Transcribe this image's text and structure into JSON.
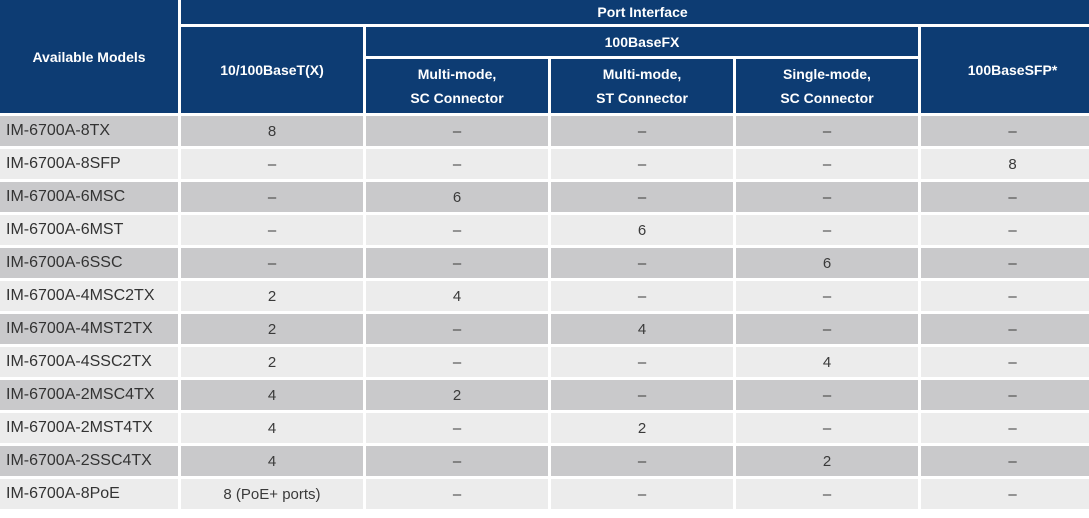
{
  "header": {
    "available_models": "Available Models",
    "port_interface": "Port Interface",
    "col_tx": "10/100BaseT(X)",
    "group_fx": "100BaseFX",
    "col_msc_line1": "Multi-mode,",
    "col_msc_line2": "SC Connector",
    "col_mst_line1": "Multi-mode,",
    "col_mst_line2": "ST Connector",
    "col_ssc_line1": "Single-mode,",
    "col_ssc_line2": "SC Connector",
    "col_sfp": "100BaseSFP*"
  },
  "rows": [
    {
      "model": "IM-6700A-8TX",
      "tx": "8",
      "msc": "–",
      "mst": "–",
      "ssc": "–",
      "sfp": "–"
    },
    {
      "model": "IM-6700A-8SFP",
      "tx": "–",
      "msc": "–",
      "mst": "–",
      "ssc": "–",
      "sfp": "8"
    },
    {
      "model": "IM-6700A-6MSC",
      "tx": "–",
      "msc": "6",
      "mst": "–",
      "ssc": "–",
      "sfp": "–"
    },
    {
      "model": "IM-6700A-6MST",
      "tx": "–",
      "msc": "–",
      "mst": "6",
      "ssc": "–",
      "sfp": "–"
    },
    {
      "model": "IM-6700A-6SSC",
      "tx": "–",
      "msc": "–",
      "mst": "–",
      "ssc": "6",
      "sfp": "–"
    },
    {
      "model": "IM-6700A-4MSC2TX",
      "tx": "2",
      "msc": "4",
      "mst": "–",
      "ssc": "–",
      "sfp": "–"
    },
    {
      "model": "IM-6700A-4MST2TX",
      "tx": "2",
      "msc": "–",
      "mst": "4",
      "ssc": "–",
      "sfp": "–"
    },
    {
      "model": "IM-6700A-4SSC2TX",
      "tx": "2",
      "msc": "–",
      "mst": "–",
      "ssc": "4",
      "sfp": "–"
    },
    {
      "model": "IM-6700A-2MSC4TX",
      "tx": "4",
      "msc": "2",
      "mst": "–",
      "ssc": "–",
      "sfp": "–"
    },
    {
      "model": "IM-6700A-2MST4TX",
      "tx": "4",
      "msc": "–",
      "mst": "2",
      "ssc": "–",
      "sfp": "–"
    },
    {
      "model": "IM-6700A-2SSC4TX",
      "tx": "4",
      "msc": "–",
      "mst": "–",
      "ssc": "2",
      "sfp": "–"
    },
    {
      "model": "IM-6700A-8PoE",
      "tx": "8 (PoE+ ports)",
      "msc": "–",
      "mst": "–",
      "ssc": "–",
      "sfp": "–"
    }
  ],
  "colors": {
    "header_bg": "#0d3c73",
    "row_shade": "#c9c9cb",
    "row_light": "#ececec"
  }
}
